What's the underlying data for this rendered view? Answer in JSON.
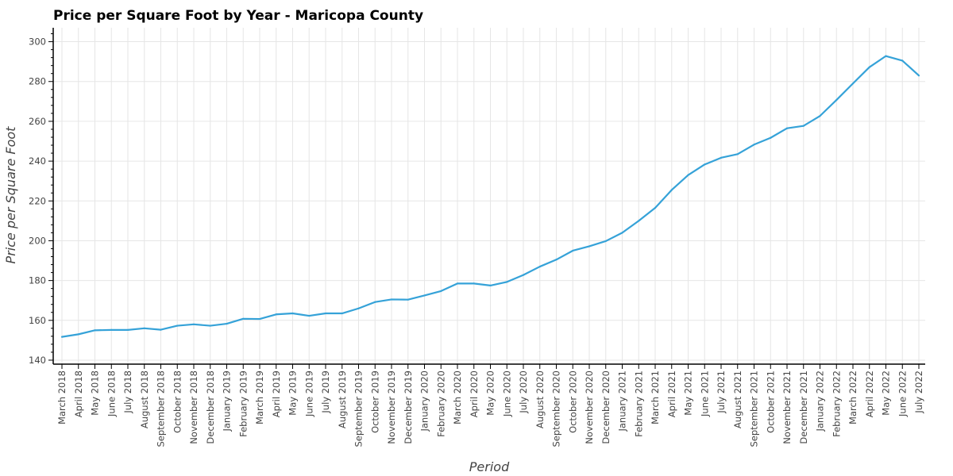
{
  "chart_data": {
    "type": "line",
    "title": "Price per Square Foot by Year - Maricopa County",
    "xlabel": "Period",
    "ylabel": "Price per Square Foot",
    "ylim": [
      138,
      307
    ],
    "yticks": [
      140,
      160,
      180,
      200,
      220,
      240,
      260,
      280,
      300
    ],
    "grid": true,
    "color": "#35a2d8",
    "categories": [
      "March 2018",
      "April 2018",
      "May 2018",
      "June 2018",
      "July 2018",
      "August 2018",
      "September 2018",
      "October 2018",
      "November 2018",
      "December 2018",
      "January 2019",
      "February 2019",
      "March 2019",
      "April 2019",
      "May 2019",
      "June 2019",
      "July 2019",
      "August 2019",
      "September 2019",
      "October 2019",
      "November 2019",
      "December 2019",
      "January 2020",
      "February 2020",
      "March 2020",
      "April 2020",
      "May 2020",
      "June 2020",
      "July 2020",
      "August 2020",
      "September 2020",
      "October 2020",
      "November 2020",
      "December 2020",
      "January 2021",
      "February 2021",
      "March 2021",
      "April 2021",
      "May 2021",
      "June 2021",
      "July 2021",
      "August 2021",
      "September 2021",
      "October 2021",
      "November 2021",
      "December 2021",
      "January 2022",
      "February 2022",
      "March 2022",
      "April 2022",
      "May 2022",
      "June 2022",
      "July 2022"
    ],
    "values": [
      151.7,
      153.0,
      155.0,
      155.2,
      155.2,
      156.0,
      155.3,
      157.3,
      158.0,
      157.3,
      158.3,
      160.8,
      160.7,
      163.0,
      163.5,
      162.3,
      163.5,
      163.5,
      166.0,
      169.2,
      170.5,
      170.4,
      172.5,
      174.7,
      178.5,
      178.5,
      177.5,
      179.3,
      182.8,
      187.0,
      190.5,
      195.0,
      197.2,
      199.8,
      204.0,
      210.0,
      216.5,
      225.5,
      233.0,
      238.3,
      241.7,
      243.5,
      248.3,
      251.7,
      256.5,
      257.7,
      262.7,
      270.7,
      279.0,
      287.2,
      292.8,
      290.5,
      283.0
    ]
  }
}
